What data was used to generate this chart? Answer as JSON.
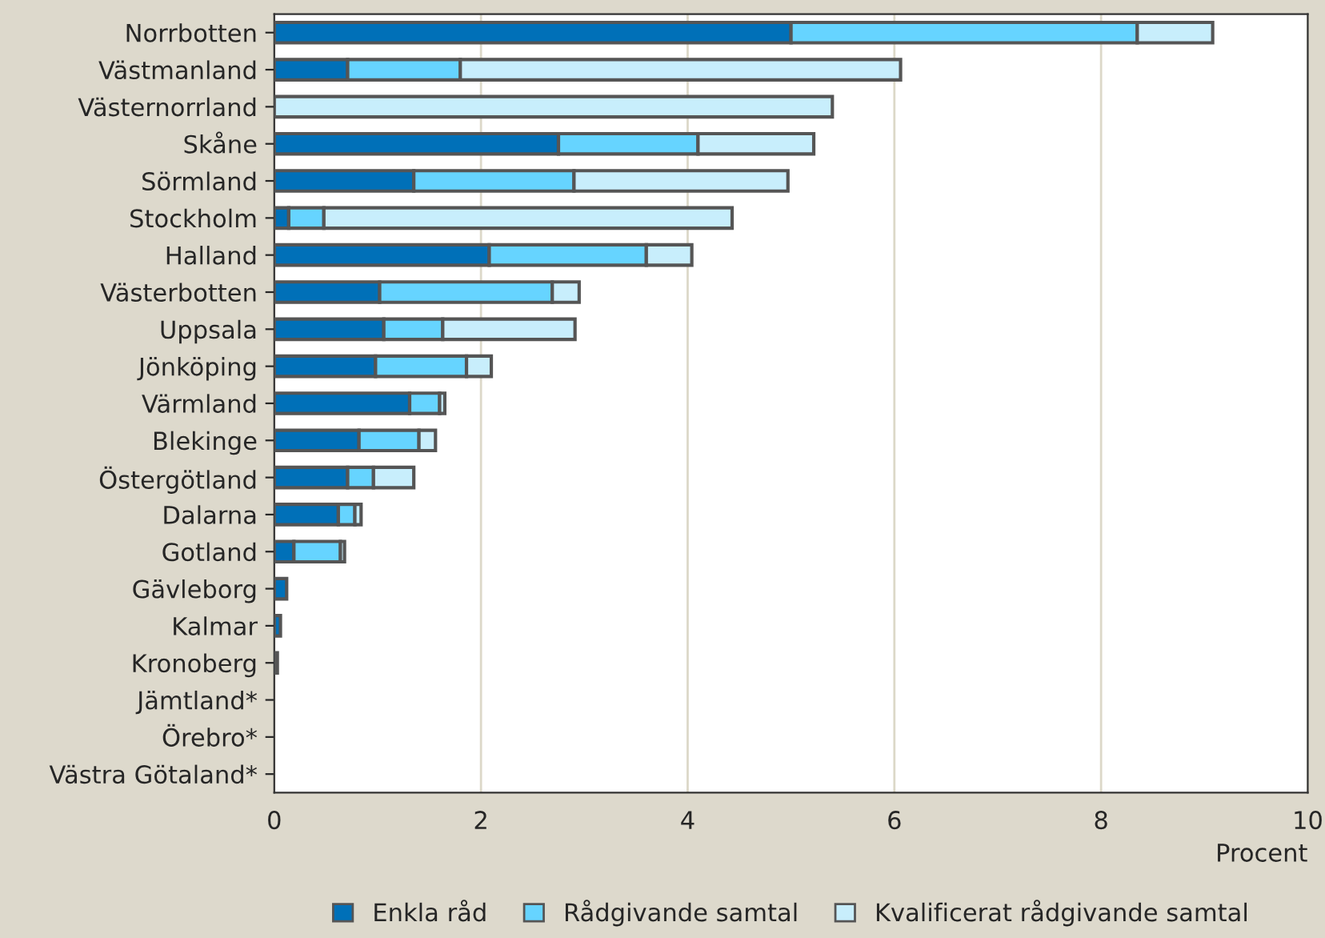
{
  "chart_data": {
    "type": "bar",
    "orientation": "horizontal",
    "stacked": true,
    "categories": [
      "Norrbotten",
      "Västmanland",
      "Västernorrland",
      "Skåne",
      "Sörmland",
      "Stockholm",
      "Halland",
      "Västerbotten",
      "Uppsala",
      "Jönköping",
      "Värmland",
      "Blekinge",
      "Östergötland",
      "Dalarna",
      "Gotland",
      "Gävleborg",
      "Kalmar",
      "Kronoberg",
      "Jämtland*",
      "Örebro*",
      "Västra Götaland*"
    ],
    "series": [
      {
        "name": "Enkla råd",
        "color": "#0070b8",
        "values": [
          5.0,
          0.71,
          0,
          2.75,
          1.35,
          0.14,
          2.08,
          1.02,
          1.06,
          0.98,
          1.31,
          0.82,
          0.71,
          0.62,
          0.19,
          0.12,
          0.06,
          0.03,
          null,
          null,
          null
        ]
      },
      {
        "name": "Rådgivande samtal",
        "color": "#66d4ff",
        "values": [
          3.35,
          1.09,
          0,
          1.35,
          1.55,
          0.34,
          1.52,
          1.67,
          0.57,
          0.88,
          0.29,
          0.58,
          0.25,
          0.16,
          0.45,
          0,
          0,
          0,
          null,
          null,
          null
        ]
      },
      {
        "name": "Kvalificerat rådgivande samtal",
        "color": "#c8eefc",
        "values": [
          0.73,
          4.26,
          5.4,
          1.12,
          2.07,
          3.95,
          0.44,
          0.26,
          1.28,
          0.24,
          0.05,
          0.16,
          0.39,
          0.06,
          0.04,
          0,
          0,
          0,
          null,
          null,
          null
        ]
      }
    ],
    "xlabel": "Procent",
    "xlim": [
      0,
      10
    ],
    "xticks": [
      0,
      2,
      4,
      6,
      8,
      10
    ],
    "grid": "x",
    "legend": "bottom"
  }
}
